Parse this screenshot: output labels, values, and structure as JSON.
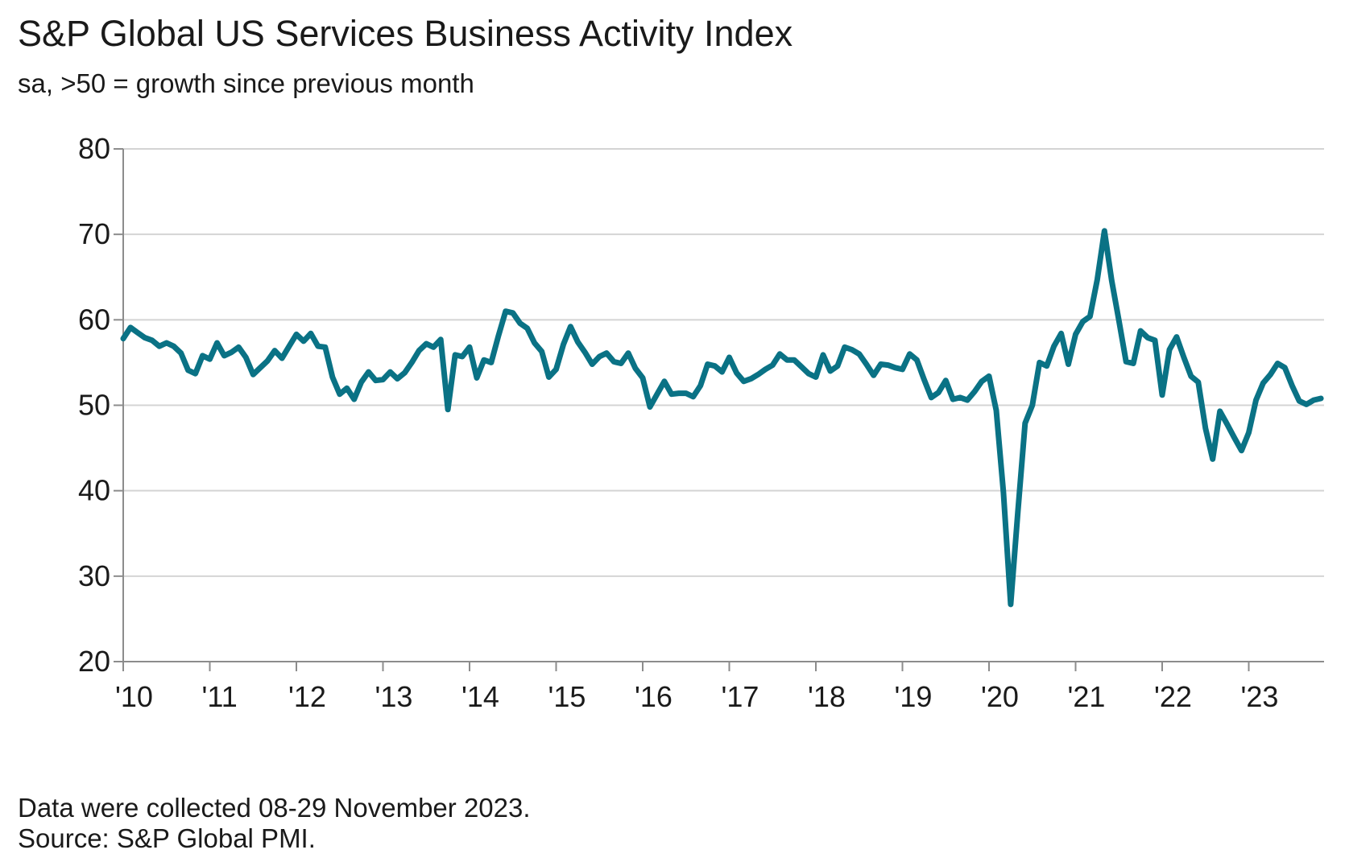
{
  "title": "S&P Global US Services Business Activity Index",
  "subtitle": "sa, >50 = growth since previous month",
  "notes": {
    "collected": "Data were collected 08-29 November 2023.",
    "source": "Source: S&P Global PMI."
  },
  "colors": {
    "series": "#0a7285",
    "grid": "#d4d4d4",
    "axis": "#8c8c8c",
    "text": "#1a1a1a"
  },
  "chart_data": {
    "type": "line",
    "title": "S&P Global US Services Business Activity Index",
    "subtitle": "sa, >50 = growth since previous month",
    "xlabel": "",
    "ylabel": "",
    "ylim": [
      20,
      80
    ],
    "yticks": [
      20,
      30,
      40,
      50,
      60,
      70,
      80
    ],
    "xlim": [
      "2010-01",
      "2023-11"
    ],
    "xtick_labels": [
      "'10",
      "'11",
      "'12",
      "'13",
      "'14",
      "'15",
      "'16",
      "'17",
      "'18",
      "'19",
      "'20",
      "'21",
      "'22",
      "'23"
    ],
    "grid": true,
    "legend": "none",
    "series": [
      {
        "start": "2010-01",
        "frequency": "monthly",
        "values": [
          57.8,
          59.1,
          58.5,
          57.9,
          57.6,
          56.9,
          57.3,
          56.9,
          56.1,
          54.1,
          53.7,
          55.8,
          55.4,
          57.3,
          55.8,
          56.2,
          56.8,
          55.6,
          53.6,
          54.4,
          55.2,
          56.4,
          55.5,
          56.9,
          58.3,
          57.5,
          58.4,
          56.9,
          56.8,
          53.3,
          51.3,
          52.0,
          50.7,
          52.7,
          53.9,
          52.9,
          53.0,
          53.9,
          53.1,
          53.8,
          55.0,
          56.4,
          57.2,
          56.8,
          57.7,
          49.5,
          55.9,
          55.7,
          56.8,
          53.2,
          55.3,
          55.0,
          58.1,
          61.0,
          60.8,
          59.6,
          59.0,
          57.3,
          56.3,
          53.3,
          54.2,
          57.1,
          59.2,
          57.4,
          56.2,
          54.8,
          55.7,
          56.1,
          55.1,
          54.9,
          56.1,
          54.3,
          53.2,
          49.8,
          51.3,
          52.8,
          51.3,
          51.4,
          51.4,
          51.0,
          52.3,
          54.8,
          54.6,
          53.9,
          55.6,
          53.8,
          52.8,
          53.1,
          53.6,
          54.2,
          54.7,
          56.0,
          55.3,
          55.3,
          54.5,
          53.7,
          53.3,
          55.9,
          54.0,
          54.6,
          56.8,
          56.5,
          56.0,
          54.8,
          53.5,
          54.8,
          54.7,
          54.4,
          54.2,
          56.0,
          55.3,
          53.0,
          50.9,
          51.5,
          52.9,
          50.7,
          50.9,
          50.6,
          51.6,
          52.8,
          53.4,
          49.4,
          39.8,
          26.7,
          37.5,
          47.9,
          50.0,
          55.0,
          54.6,
          56.9,
          58.4,
          54.8,
          58.3,
          59.8,
          60.4,
          64.7,
          70.4,
          64.6,
          59.9,
          55.1,
          54.9,
          58.7,
          57.9,
          57.6,
          51.2,
          56.5,
          58.0,
          55.6,
          53.4,
          52.7,
          47.3,
          43.7,
          49.3,
          47.8,
          46.2,
          44.7,
          46.8,
          50.6,
          52.6,
          53.6,
          54.9,
          54.4,
          52.3,
          50.5,
          50.1,
          50.6,
          50.8
        ]
      }
    ]
  }
}
